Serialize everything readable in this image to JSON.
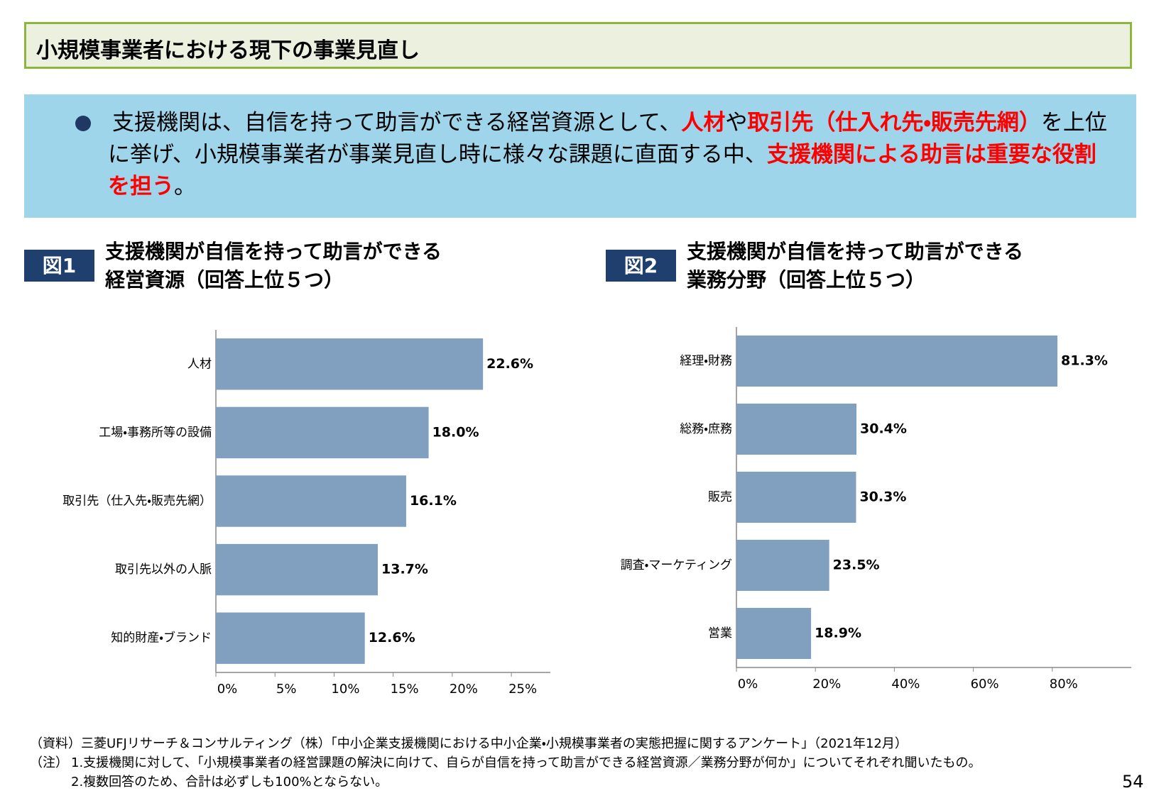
{
  "header": {
    "title": "小規模事業者における現下の事業見直し"
  },
  "summary": {
    "runs": [
      {
        "text": "支援機関は、自信を持って助言ができる経営資源として、",
        "emphasis": false
      },
      {
        "text": "人材",
        "emphasis": true
      },
      {
        "text": "や",
        "emphasis": false
      },
      {
        "text": "取引先（仕入れ先・販売先網）",
        "emphasis": true
      },
      {
        "text": "を上位に挙げ、小規模事業者が事業見直し時に様々な課題に直面する中、",
        "emphasis": false
      },
      {
        "text": "支援機関による助言は重要な役割を担う",
        "emphasis": true
      },
      {
        "text": "。",
        "emphasis": false
      }
    ]
  },
  "chart_data": [
    {
      "type": "hbar",
      "figure_label": "図1",
      "title": [
        "支援機関が自信を持って助言ができる",
        "経営資源（回答上位５つ）"
      ],
      "categories": [
        "人材",
        "工場・事務所等の設備",
        "取引先（仕入先・販売先網）",
        "取引先以外の人脈",
        "知的財産・ブランド"
      ],
      "values": [
        22.6,
        18.0,
        16.1,
        13.7,
        12.6
      ],
      "value_labels": [
        "22.6%",
        "18.0%",
        "16.1%",
        "13.7%",
        "12.6%"
      ],
      "color": "#819fbf",
      "xlim": [
        0,
        28.3
      ],
      "xticks": [
        {
          "value": 0,
          "label": "0%"
        },
        {
          "value": 5,
          "label": "5%"
        },
        {
          "value": 10,
          "label": "10%"
        },
        {
          "value": 15,
          "label": "15%"
        },
        {
          "value": 20,
          "label": "20%"
        },
        {
          "value": 25,
          "label": "25%"
        }
      ]
    },
    {
      "type": "hbar",
      "figure_label": "図2",
      "title": [
        "支援機関が自信を持って助言ができる",
        "業務分野（回答上位５つ）"
      ],
      "categories": [
        "経理・財務",
        "総務・庶務",
        "販売",
        "調査・マーケティング",
        "営業"
      ],
      "values": [
        81.3,
        30.4,
        30.3,
        23.5,
        18.9
      ],
      "value_labels": [
        "81.3%",
        "30.4%",
        "30.3%",
        "23.5%",
        "18.9%"
      ],
      "color": "#819fbf",
      "xlim": [
        0,
        100
      ],
      "xticks": [
        {
          "value": 0,
          "label": "0%"
        },
        {
          "value": 20,
          "label": "20%"
        },
        {
          "value": 40,
          "label": "40%"
        },
        {
          "value": 60,
          "label": "60%"
        },
        {
          "value": 80,
          "label": "80%"
        }
      ]
    }
  ],
  "footer": {
    "source": "（資料）三菱UFJリサーチ＆コンサルティング（株）「中小企業支援機関における中小企業・小規模事業者の実態把握に関するアンケート」（2021年12月）",
    "notes_label": "（注）",
    "notes": [
      "1.支援機関に対して、「小規模事業者の経営課題の解決に向けて、自らが自信を持って助言ができる経営資源／業務分野が何か」についてそれぞれ聞いたもの。",
      "2.複数回答のため、合計は必ずしも100%とならない。"
    ],
    "page_number": "54"
  }
}
